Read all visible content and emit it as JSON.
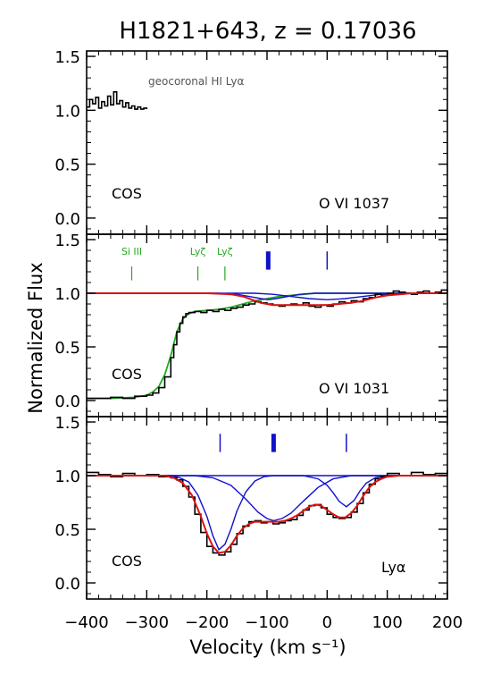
{
  "chart_data": {
    "type": "line",
    "title": "H1821+643, z = 0.17036",
    "xlabel": "Velocity (km s⁻¹)",
    "ylabel": "Normalized Flux",
    "xlim": [
      -400,
      200
    ],
    "xticks": [
      -400,
      -300,
      -200,
      -100,
      0,
      100,
      200
    ],
    "xtick_labels": [
      "−400",
      "−300",
      "−200",
      "−100",
      "0",
      "100",
      "200"
    ],
    "yticks": [
      0.0,
      0.5,
      1.0,
      1.5
    ],
    "ytick_labels": [
      "0.0",
      "0.5",
      "1.0",
      "1.5"
    ],
    "colors": {
      "data": "#000000",
      "model": "#dd1111",
      "component": "#1111cc",
      "contaminant": "#22aa22"
    },
    "panels": [
      {
        "id": "ovi1037",
        "ylim": [
          -0.15,
          1.55
        ],
        "instrument_label": "COS",
        "line_label": "O VI 1037",
        "annotation": "geocoronal HI Lyα",
        "data": {
          "x": [
            -400,
            -395,
            -390,
            -385,
            -380,
            -375,
            -370,
            -365,
            -360,
            -355,
            -350,
            -345,
            -340,
            -335,
            -330,
            -325,
            -320,
            -315,
            -310,
            -305,
            -300
          ],
          "y": [
            1.03,
            1.1,
            1.06,
            1.12,
            1.02,
            1.08,
            1.04,
            1.13,
            1.05,
            1.17,
            1.06,
            1.09,
            1.03,
            1.07,
            1.02,
            1.04,
            1.01,
            1.03,
            1.01,
            1.02,
            1.01
          ]
        },
        "ticks": []
      },
      {
        "id": "ovi1031",
        "ylim": [
          -0.15,
          1.55
        ],
        "instrument_label": "COS",
        "line_label": "O VI 1031",
        "species_labels": [
          {
            "text": "Si III",
            "v": -325
          },
          {
            "text": "Lyζ",
            "v": -215
          },
          {
            "text": "Lyζ",
            "v": -170
          }
        ],
        "ticks": [
          {
            "v": -98,
            "bold": true
          },
          {
            "v": 0,
            "bold": false
          }
        ],
        "data": {
          "x": [
            -400,
            -380,
            -360,
            -340,
            -320,
            -300,
            -290,
            -280,
            -270,
            -260,
            -255,
            -250,
            -245,
            -240,
            -235,
            -230,
            -220,
            -210,
            -200,
            -190,
            -180,
            -170,
            -160,
            -150,
            -140,
            -130,
            -120,
            -110,
            -100,
            -90,
            -80,
            -70,
            -60,
            -50,
            -40,
            -30,
            -20,
            -10,
            0,
            10,
            20,
            30,
            40,
            50,
            60,
            70,
            80,
            90,
            100,
            110,
            120,
            130,
            140,
            150,
            160,
            170,
            180,
            190,
            200
          ],
          "y": [
            0.02,
            0.02,
            0.03,
            0.02,
            0.04,
            0.05,
            0.07,
            0.12,
            0.22,
            0.4,
            0.52,
            0.64,
            0.72,
            0.78,
            0.81,
            0.82,
            0.83,
            0.82,
            0.84,
            0.83,
            0.85,
            0.84,
            0.86,
            0.87,
            0.89,
            0.9,
            0.92,
            0.91,
            0.9,
            0.89,
            0.88,
            0.89,
            0.9,
            0.89,
            0.91,
            0.88,
            0.87,
            0.89,
            0.88,
            0.9,
            0.92,
            0.91,
            0.93,
            0.92,
            0.95,
            0.96,
            0.99,
            0.98,
            1.0,
            1.02,
            1.01,
            1.0,
            0.99,
            1.01,
            1.02,
            1.0,
            1.01,
            1.03,
            1.01
          ]
        },
        "contaminant_model": {
          "x": [
            -400,
            -360,
            -320,
            -300,
            -290,
            -280,
            -270,
            -260,
            -250,
            -240,
            -230,
            -220,
            -200,
            -180,
            -160,
            -140,
            -120,
            -100,
            -80,
            -60,
            -40,
            -20,
            0,
            20,
            40,
            60,
            80,
            100,
            120,
            140,
            160,
            180,
            200
          ],
          "y": [
            0.02,
            0.02,
            0.03,
            0.05,
            0.08,
            0.13,
            0.24,
            0.42,
            0.64,
            0.76,
            0.81,
            0.83,
            0.84,
            0.85,
            0.87,
            0.9,
            0.93,
            0.95,
            0.97,
            0.98,
            0.99,
            1.0,
            1.0,
            1.0,
            1.0,
            1.0,
            1.0,
            1.0,
            1.0,
            1.0,
            1.0,
            1.0,
            1.0
          ]
        },
        "total_model": {
          "x": [
            -400,
            -200,
            -160,
            -140,
            -120,
            -110,
            -100,
            -90,
            -80,
            -70,
            -60,
            -40,
            -20,
            0,
            20,
            40,
            60,
            80,
            100,
            120,
            140,
            160,
            200
          ],
          "y": [
            1.0,
            1.0,
            0.99,
            0.97,
            0.93,
            0.91,
            0.9,
            0.89,
            0.89,
            0.89,
            0.89,
            0.89,
            0.89,
            0.89,
            0.9,
            0.91,
            0.93,
            0.96,
            0.98,
            0.99,
            1.0,
            1.0,
            1.0
          ]
        },
        "components": [
          {
            "x": [
              -400,
              -180,
              -150,
              -130,
              -110,
              -98,
              -85,
              -65,
              -45,
              -20,
              200
            ],
            "y": [
              1.0,
              1.0,
              0.99,
              0.97,
              0.95,
              0.94,
              0.95,
              0.97,
              0.99,
              1.0,
              1.0
            ]
          },
          {
            "x": [
              -400,
              -120,
              -90,
              -60,
              -30,
              0,
              30,
              60,
              90,
              120,
              200
            ],
            "y": [
              1.0,
              1.0,
              0.99,
              0.97,
              0.95,
              0.94,
              0.95,
              0.97,
              0.99,
              1.0,
              1.0
            ]
          }
        ]
      },
      {
        "id": "lya",
        "ylim": [
          -0.15,
          1.55
        ],
        "instrument_label": "COS",
        "line_label": "Lyα",
        "ticks": [
          {
            "v": -178,
            "bold": false
          },
          {
            "v": -89,
            "bold": true
          },
          {
            "v": 32,
            "bold": false
          }
        ],
        "data": {
          "x": [
            -400,
            -380,
            -360,
            -340,
            -320,
            -300,
            -280,
            -260,
            -250,
            -240,
            -230,
            -220,
            -210,
            -200,
            -190,
            -180,
            -170,
            -160,
            -150,
            -140,
            -130,
            -120,
            -110,
            -100,
            -90,
            -80,
            -70,
            -60,
            -50,
            -40,
            -30,
            -20,
            -10,
            0,
            10,
            20,
            30,
            40,
            50,
            60,
            70,
            80,
            90,
            100,
            120,
            140,
            160,
            180,
            200
          ],
          "y": [
            1.03,
            1.01,
            0.99,
            1.02,
            1.0,
            1.01,
            0.99,
            0.98,
            0.96,
            0.9,
            0.8,
            0.64,
            0.47,
            0.34,
            0.28,
            0.26,
            0.29,
            0.36,
            0.46,
            0.53,
            0.57,
            0.58,
            0.56,
            0.57,
            0.55,
            0.56,
            0.58,
            0.59,
            0.63,
            0.68,
            0.72,
            0.73,
            0.7,
            0.64,
            0.61,
            0.6,
            0.61,
            0.66,
            0.74,
            0.84,
            0.92,
            0.97,
            0.99,
            1.02,
            1.0,
            1.03,
            1.01,
            1.02,
            1.05
          ]
        },
        "total_model": {
          "x": [
            -400,
            -270,
            -255,
            -240,
            -225,
            -210,
            -200,
            -190,
            -180,
            -170,
            -160,
            -150,
            -140,
            -130,
            -120,
            -110,
            -100,
            -90,
            -80,
            -70,
            -60,
            -50,
            -40,
            -30,
            -20,
            -10,
            0,
            10,
            20,
            30,
            40,
            50,
            60,
            70,
            80,
            90,
            100,
            120,
            140,
            200
          ],
          "y": [
            1.0,
            1.0,
            0.98,
            0.93,
            0.82,
            0.62,
            0.46,
            0.34,
            0.28,
            0.29,
            0.35,
            0.44,
            0.51,
            0.55,
            0.57,
            0.57,
            0.57,
            0.57,
            0.57,
            0.58,
            0.6,
            0.63,
            0.67,
            0.71,
            0.73,
            0.72,
            0.68,
            0.64,
            0.61,
            0.61,
            0.65,
            0.72,
            0.81,
            0.89,
            0.94,
            0.97,
            0.99,
            1.0,
            1.0,
            1.0
          ]
        },
        "components": [
          {
            "x": [
              -400,
              -260,
              -245,
              -230,
              -215,
              -200,
              -190,
              -180,
              -170,
              -160,
              -150,
              -135,
              -120,
              -105,
              -90,
              200
            ],
            "y": [
              1.0,
              1.0,
              0.98,
              0.94,
              0.82,
              0.62,
              0.44,
              0.31,
              0.36,
              0.5,
              0.67,
              0.85,
              0.95,
              0.99,
              1.0,
              1.0
            ]
          },
          {
            "x": [
              -400,
              -220,
              -190,
              -160,
              -135,
              -115,
              -100,
              -89,
              -75,
              -60,
              -40,
              -15,
              10,
              40,
              200
            ],
            "y": [
              1.0,
              1.0,
              0.98,
              0.91,
              0.78,
              0.66,
              0.6,
              0.58,
              0.6,
              0.65,
              0.76,
              0.89,
              0.97,
              1.0,
              1.0
            ]
          },
          {
            "x": [
              -400,
              -40,
              -15,
              0,
              10,
              20,
              32,
              45,
              55,
              65,
              80,
              100,
              200
            ],
            "y": [
              1.0,
              1.0,
              0.97,
              0.91,
              0.84,
              0.76,
              0.71,
              0.77,
              0.86,
              0.93,
              0.98,
              1.0,
              1.0
            ]
          }
        ]
      }
    ]
  }
}
